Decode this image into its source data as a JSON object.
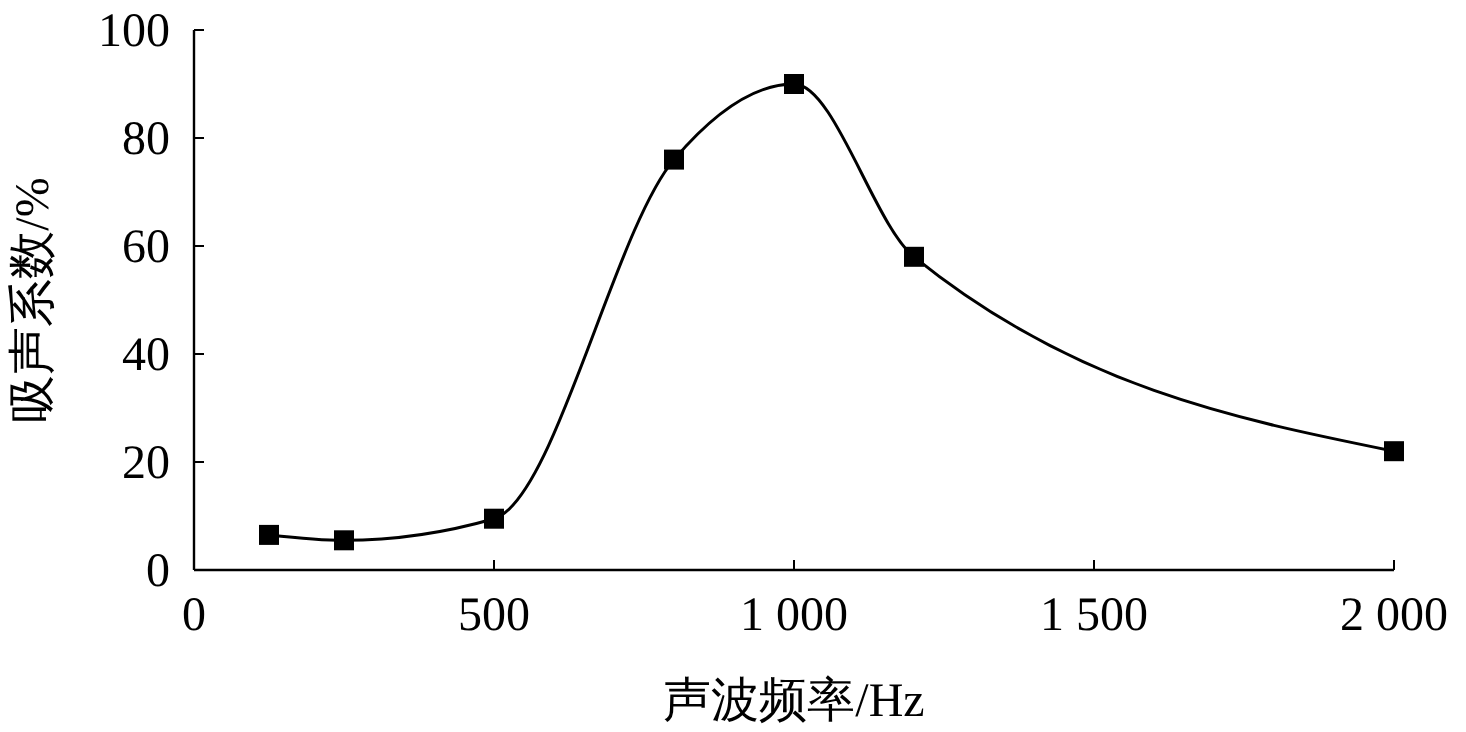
{
  "chart_data": {
    "type": "line",
    "xlabel": "声波频率/Hz",
    "ylabel": "吸声系数/%",
    "x": [
      125,
      250,
      500,
      800,
      1000,
      1200,
      2000
    ],
    "series": [
      {
        "color": "#000000",
        "values": [
          6.5,
          5.5,
          9.5,
          76,
          90,
          58,
          22
        ]
      }
    ],
    "xlim": [
      0,
      2000
    ],
    "xticks": [
      0,
      500,
      {
        "value": 1000,
        "label": "1 000"
      },
      {
        "value": 1500,
        "label": "1 500"
      },
      {
        "value": 2000,
        "label": "2 000"
      }
    ],
    "ylim": [
      0,
      100
    ],
    "yticks": [
      0,
      20,
      40,
      60,
      80,
      100
    ],
    "grid": false,
    "marker": "square",
    "line_style": "solid"
  }
}
